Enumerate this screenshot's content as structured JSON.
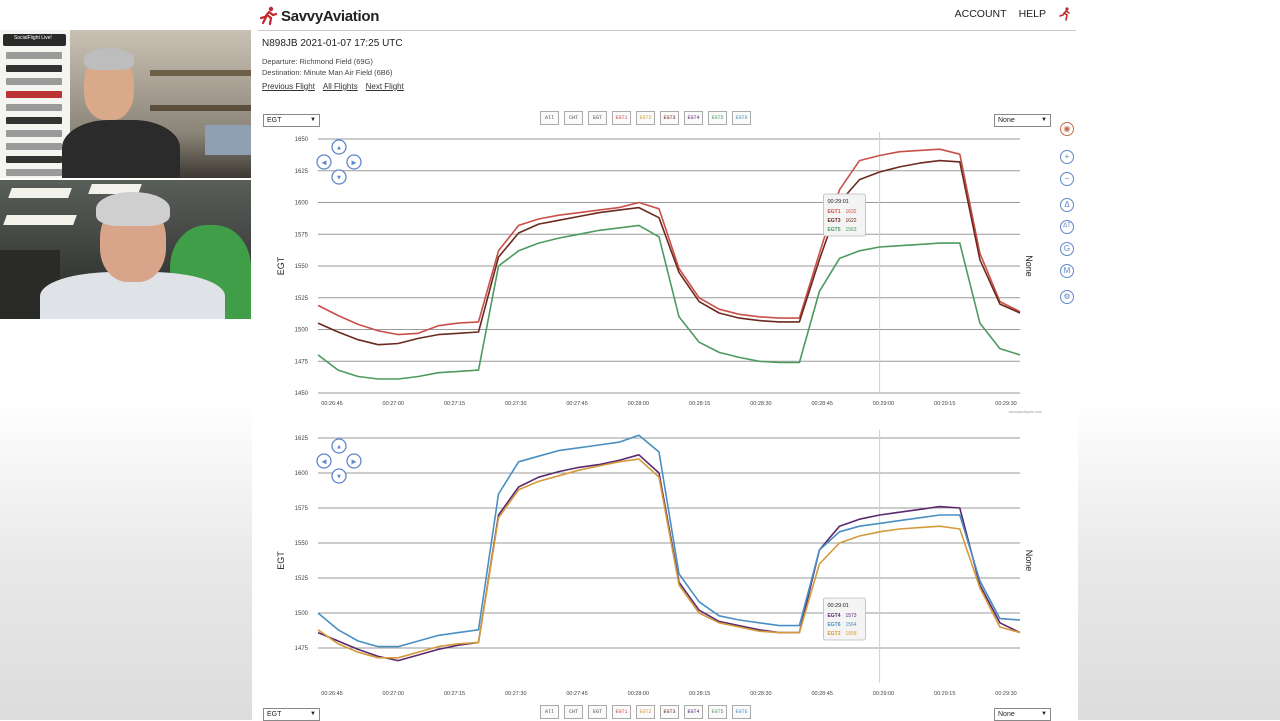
{
  "sidebar_video": {
    "brand_lines": [
      "SocialFlight Live!"
    ]
  },
  "header": {
    "logo_text": "SavvyAviation",
    "nav": [
      {
        "label": "ACCOUNT"
      },
      {
        "label": "HELP"
      }
    ]
  },
  "flight": {
    "title": "N898JB 2021-01-07 17:25 UTC",
    "departure": "Departure: Richmond Field (69G)",
    "destination": "Destination: Minute Man Air Field (6B6)",
    "links": [
      "Previous Flight",
      "All Flights",
      "Next Flight"
    ]
  },
  "controls": {
    "left_select": "EGT",
    "right_select": "None",
    "series_buttons": [
      "All",
      "CHT",
      "EGT",
      "EGT1",
      "EGT2",
      "EGT3",
      "EGT4",
      "EGT5",
      "EGT6"
    ]
  },
  "tools": [
    "zoom-in-icon",
    "zoom-out-icon",
    "delta-icon",
    "delta-t-icon",
    "g-icon",
    "m-icon",
    "gear-icon"
  ],
  "chart_data": [
    {
      "type": "line",
      "ylabel": "EGT",
      "y2label": "None",
      "ylim": [
        1450,
        1650
      ],
      "yticks": [
        1450,
        1475,
        1500,
        1525,
        1550,
        1575,
        1600,
        1625,
        1650
      ],
      "xtick_labels": [
        "00:26:45",
        "00:27:00",
        "00:27:15",
        "00:27:30",
        "00:27:45",
        "00:28:00",
        "00:28:15",
        "00:28:30",
        "00:28:45",
        "00:29:00",
        "00:29:15",
        "00:29:30"
      ],
      "series": [
        {
          "name": "EGT1",
          "color": "#c9504a",
          "x": [
            0,
            5,
            10,
            15,
            20,
            25,
            30,
            35,
            40,
            45,
            50,
            55,
            60,
            65,
            70,
            75,
            80,
            85,
            90,
            95,
            100,
            105,
            110,
            115,
            120,
            125,
            130,
            135,
            140,
            145,
            150,
            155,
            160,
            165,
            170,
            175
          ],
          "y": [
            1519,
            1511,
            1504,
            1499,
            1496,
            1497,
            1503,
            1505,
            1506,
            1562,
            1582,
            1587,
            1590,
            1592,
            1594,
            1596,
            1600,
            1595,
            1548,
            1525,
            1516,
            1512,
            1510,
            1509,
            1509,
            1560,
            1610,
            1633,
            1637,
            1640,
            1641,
            1642,
            1638,
            1560,
            1522,
            1514
          ]
        },
        {
          "name": "EGT3",
          "color": "#6b2a1e",
          "x": [
            0,
            5,
            10,
            15,
            20,
            25,
            30,
            35,
            40,
            45,
            50,
            55,
            60,
            65,
            70,
            75,
            80,
            85,
            90,
            95,
            100,
            105,
            110,
            115,
            120,
            125,
            130,
            135,
            140,
            145,
            150,
            155,
            160,
            165,
            170,
            175
          ],
          "y": [
            1505,
            1498,
            1492,
            1488,
            1489,
            1493,
            1496,
            1497,
            1498,
            1557,
            1576,
            1583,
            1586,
            1589,
            1592,
            1594,
            1596,
            1588,
            1545,
            1522,
            1513,
            1509,
            1507,
            1506,
            1506,
            1555,
            1600,
            1618,
            1624,
            1628,
            1631,
            1633,
            1632,
            1555,
            1520,
            1513
          ]
        },
        {
          "name": "EGT5",
          "color": "#4d9a60",
          "x": [
            0,
            5,
            10,
            15,
            20,
            25,
            30,
            35,
            40,
            45,
            50,
            55,
            60,
            65,
            70,
            75,
            80,
            85,
            90,
            95,
            100,
            105,
            110,
            115,
            120,
            125,
            130,
            135,
            140,
            145,
            150,
            155,
            160,
            165,
            170,
            175
          ],
          "y": [
            1480,
            1468,
            1463,
            1461,
            1461,
            1463,
            1466,
            1467,
            1468,
            1550,
            1562,
            1568,
            1572,
            1575,
            1578,
            1580,
            1582,
            1573,
            1510,
            1490,
            1482,
            1478,
            1475,
            1474,
            1474,
            1530,
            1556,
            1562,
            1565,
            1566,
            1567,
            1568,
            1568,
            1505,
            1485,
            1480
          ]
        }
      ],
      "tooltip": {
        "time": "00:29:01",
        "rows": [
          {
            "name": "EGT1",
            "value": "1632"
          },
          {
            "name": "EGT3",
            "value": "1622"
          },
          {
            "name": "EGT5",
            "value": "1563"
          }
        ]
      },
      "watermark": "savvyanalysis.com"
    },
    {
      "type": "line",
      "ylabel": "EGT",
      "y2label": "None",
      "ylim": [
        1450,
        1625
      ],
      "yticks": [
        1475,
        1500,
        1525,
        1550,
        1575,
        1600,
        1625
      ],
      "xtick_labels": [
        "00:26:45",
        "00:27:00",
        "00:27:15",
        "00:27:30",
        "00:27:45",
        "00:28:00",
        "00:28:15",
        "00:28:30",
        "00:28:45",
        "00:29:00",
        "00:29:15",
        "00:29:30"
      ],
      "series": [
        {
          "name": "EGT4",
          "color": "#5a2a6e",
          "x": [
            0,
            5,
            10,
            15,
            20,
            25,
            30,
            35,
            40,
            45,
            50,
            55,
            60,
            65,
            70,
            75,
            80,
            85,
            90,
            95,
            100,
            105,
            110,
            115,
            120,
            125,
            130,
            135,
            140,
            145,
            150,
            155,
            160,
            165,
            170,
            175
          ],
          "y": [
            1486,
            1480,
            1474,
            1469,
            1466,
            1470,
            1474,
            1477,
            1479,
            1570,
            1590,
            1597,
            1601,
            1604,
            1606,
            1609,
            1613,
            1600,
            1522,
            1502,
            1494,
            1491,
            1488,
            1486,
            1486,
            1545,
            1562,
            1567,
            1570,
            1572,
            1574,
            1576,
            1575,
            1520,
            1493,
            1486
          ]
        },
        {
          "name": "EGT6",
          "color": "#4a8fc2",
          "x": [
            0,
            5,
            10,
            15,
            20,
            25,
            30,
            35,
            40,
            45,
            50,
            55,
            60,
            65,
            70,
            75,
            80,
            85,
            90,
            95,
            100,
            105,
            110,
            115,
            120,
            125,
            130,
            135,
            140,
            145,
            150,
            155,
            160,
            165,
            170,
            175
          ],
          "y": [
            1500,
            1488,
            1480,
            1476,
            1476,
            1480,
            1484,
            1486,
            1488,
            1585,
            1608,
            1612,
            1616,
            1618,
            1620,
            1622,
            1627,
            1615,
            1528,
            1508,
            1498,
            1495,
            1493,
            1491,
            1491,
            1545,
            1558,
            1562,
            1564,
            1566,
            1568,
            1570,
            1570,
            1523,
            1496,
            1495
          ]
        },
        {
          "name": "EGT2",
          "color": "#d49a3c",
          "x": [
            0,
            5,
            10,
            15,
            20,
            25,
            30,
            35,
            40,
            45,
            50,
            55,
            60,
            65,
            70,
            75,
            80,
            85,
            90,
            95,
            100,
            105,
            110,
            115,
            120,
            125,
            130,
            135,
            140,
            145,
            150,
            155,
            160,
            165,
            170,
            175
          ],
          "y": [
            1488,
            1478,
            1472,
            1468,
            1468,
            1472,
            1476,
            1478,
            1479,
            1568,
            1588,
            1594,
            1598,
            1602,
            1605,
            1608,
            1610,
            1597,
            1520,
            1500,
            1493,
            1490,
            1487,
            1486,
            1486,
            1535,
            1550,
            1555,
            1558,
            1560,
            1561,
            1562,
            1560,
            1518,
            1490,
            1486
          ]
        }
      ],
      "tooltip": {
        "time": "00:29:01",
        "rows": [
          {
            "name": "EGT4",
            "value": "1573"
          },
          {
            "name": "EGT6",
            "value": "1564"
          },
          {
            "name": "EGT2",
            "value": "1558"
          }
        ]
      },
      "watermark": "savvyanalysis.com"
    }
  ]
}
